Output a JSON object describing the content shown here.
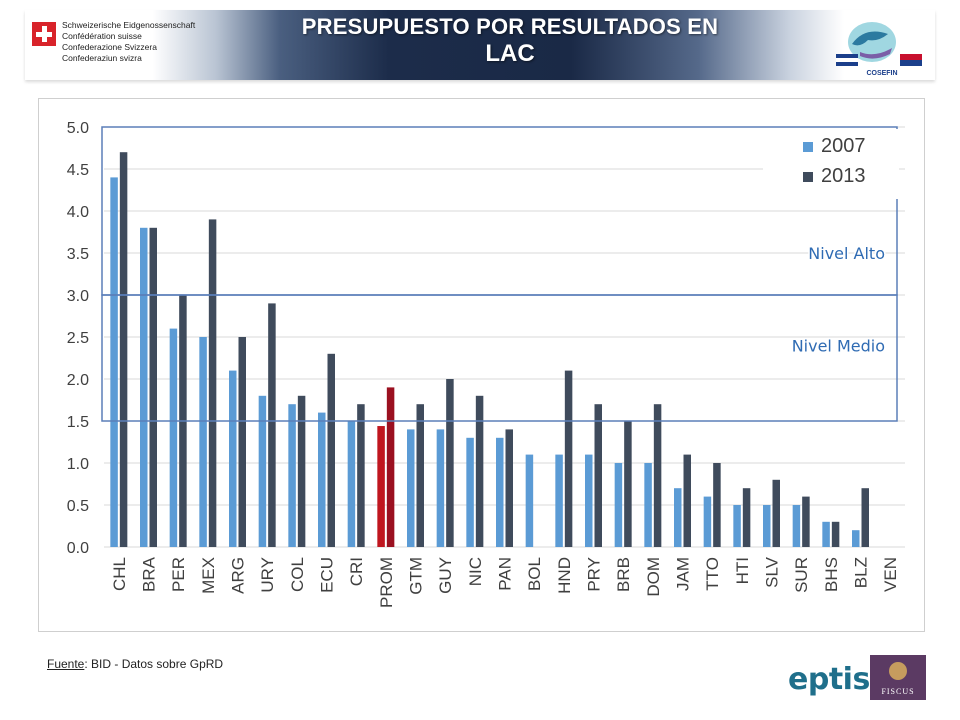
{
  "header": {
    "swiss_lines": [
      "Schweizerische Eidgenossenschaft",
      "Confédération suisse",
      "Confederazione Svizzera",
      "Confederaziun svizra"
    ],
    "title_line1": "PRESUPUESTO POR RESULTADOS EN",
    "title_line2": "LAC",
    "partner_logo_text": "COSEFIN"
  },
  "chart_data": {
    "type": "bar",
    "categories": [
      "CHL",
      "BRA",
      "PER",
      "MEX",
      "ARG",
      "URY",
      "COL",
      "ECU",
      "CRI",
      "PROM",
      "GTM",
      "GUY",
      "NIC",
      "PAN",
      "BOL",
      "HND",
      "PRY",
      "BRB",
      "DOM",
      "JAM",
      "TTO",
      "HTI",
      "SLV",
      "SUR",
      "BHS",
      "BLZ",
      "VEN"
    ],
    "series": [
      {
        "name": "2007",
        "color": "#5b9bd5",
        "values": [
          4.4,
          3.8,
          2.6,
          2.5,
          2.1,
          1.8,
          1.7,
          1.6,
          1.5,
          1.44,
          1.4,
          1.4,
          1.3,
          1.3,
          1.1,
          1.1,
          1.1,
          1.0,
          1.0,
          0.7,
          0.6,
          0.5,
          0.5,
          0.5,
          0.3,
          0.2,
          0
        ]
      },
      {
        "name": "2013",
        "color": "#3f4b5c",
        "values": [
          4.7,
          3.8,
          3.0,
          3.9,
          2.5,
          2.9,
          1.8,
          2.3,
          1.7,
          1.9,
          1.7,
          2.0,
          1.8,
          1.4,
          0,
          2.1,
          1.7,
          1.5,
          1.7,
          1.1,
          1.0,
          0.7,
          0.8,
          0.6,
          0.3,
          0.7,
          0
        ]
      }
    ],
    "highlight": {
      "category": "PROM",
      "color_2007": "#c0161f",
      "color_2013": "#9b1020"
    },
    "yticks": [
      "0.0",
      "0.5",
      "1.0",
      "1.5",
      "2.0",
      "2.5",
      "3.0",
      "3.5",
      "4.0",
      "4.5",
      "5.0"
    ],
    "ylim": [
      0,
      5
    ],
    "grid": true,
    "legend_position": "top-right",
    "bands": [
      {
        "label": "Nivel Alto",
        "from": 3.0,
        "to": 5.0
      },
      {
        "label": "Nivel Medio",
        "from": 1.5,
        "to": 3.0
      }
    ]
  },
  "footer": {
    "source_label": "Fuente",
    "source_text": ": BID - Datos sobre GpRD",
    "logo1": "eptisa",
    "logo2": "FISCUS"
  }
}
